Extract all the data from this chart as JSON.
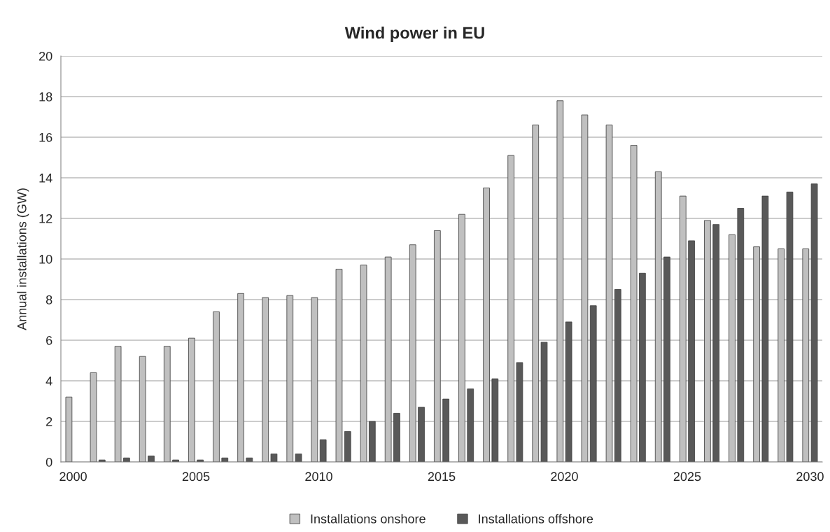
{
  "chart_data": {
    "type": "bar",
    "title": "Wind power in EU",
    "ylabel": "Annual installations (GW)",
    "categories": [
      "2000",
      null,
      null,
      null,
      null,
      "2005",
      null,
      null,
      null,
      null,
      "2010",
      null,
      null,
      null,
      null,
      "2015",
      null,
      null,
      null,
      null,
      "2020",
      null,
      null,
      null,
      null,
      "2025",
      null,
      null,
      null,
      null,
      "2030"
    ],
    "series": [
      {
        "name": "Installations onshore",
        "color": "#c0c0c0",
        "values": [
          3.2,
          4.4,
          5.7,
          5.2,
          5.7,
          6.1,
          7.4,
          8.3,
          8.1,
          8.2,
          8.1,
          9.5,
          9.7,
          10.1,
          10.7,
          11.4,
          12.2,
          13.5,
          15.1,
          16.6,
          17.8,
          17.1,
          16.6,
          15.6,
          14.3,
          13.1,
          11.9,
          11.2,
          10.6,
          10.5,
          10.5
        ]
      },
      {
        "name": "Installations offshore",
        "color": "#595959",
        "values": [
          null,
          0.1,
          0.2,
          0.3,
          0.1,
          0.1,
          0.2,
          0.2,
          0.4,
          0.4,
          1.1,
          1.5,
          2.0,
          2.4,
          2.7,
          3.1,
          3.6,
          4.1,
          4.9,
          5.9,
          6.9,
          7.7,
          8.5,
          9.3,
          10.1,
          10.9,
          11.7,
          12.5,
          13.1,
          13.3,
          13.7
        ]
      }
    ],
    "ylim": [
      0,
      20
    ],
    "yticks": [
      0,
      2,
      4,
      6,
      8,
      10,
      12,
      14,
      16,
      18,
      20
    ],
    "grid": "y",
    "legend": "bottom"
  }
}
